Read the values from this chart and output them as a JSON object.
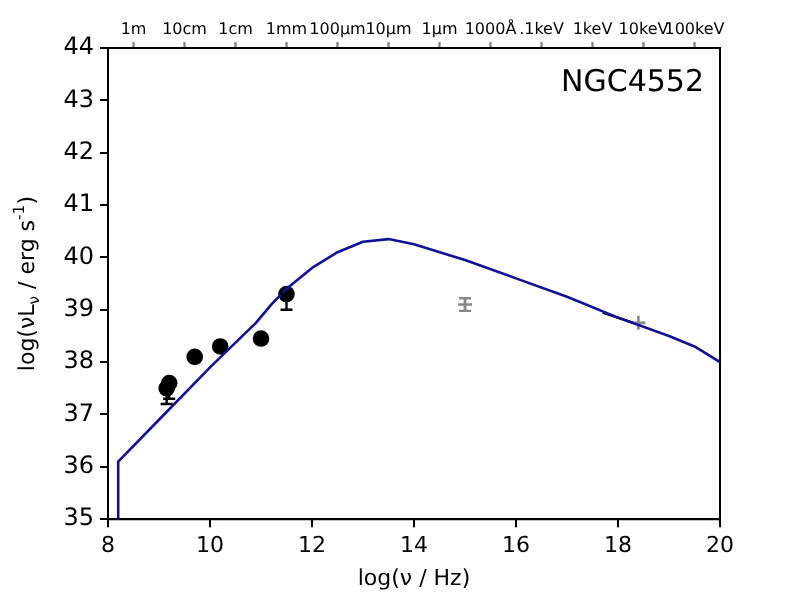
{
  "chart_data": {
    "type": "line",
    "annotations": [
      "NGC4552",
      "1m",
      "10cm",
      "1cm",
      "1mm",
      "100μm",
      "10μm",
      "1μm",
      "1000Å",
      ".1keV",
      "1keV",
      "10keV",
      "100keV"
    ],
    "xlabel": "log(ν / Hz)",
    "ylabel": "log(νL$_{ν}$ / erg s$^{-1}$)",
    "xlim": [
      8,
      20
    ],
    "xticks": [
      8,
      10,
      12,
      14,
      16,
      18,
      20
    ],
    "ylim": [
      35,
      44
    ],
    "yticks": [
      35,
      36,
      37,
      38,
      39,
      40,
      41,
      42,
      43,
      44
    ],
    "series": [
      {
        "color": "#10109a",
        "marker": "none",
        "x": [
          8.2,
          8.2,
          9,
          10,
          10.9,
          11.2,
          11.5,
          12,
          12.5,
          13,
          13.5,
          14,
          15,
          16,
          17,
          18,
          19,
          19.5,
          20
        ],
        "values": [
          35,
          36.1,
          36.9,
          37.9,
          38.75,
          39.1,
          39.4,
          39.8,
          40.1,
          40.3,
          40.35,
          40.25,
          39.95,
          39.6,
          39.25,
          38.85,
          38.5,
          38.3,
          38.0
        ]
      },
      {
        "type": "scatter",
        "color": "#000000",
        "marker": "circle",
        "x": [
          9.15,
          9.2,
          9.7,
          10.2,
          11.0,
          11.5
        ],
        "values": [
          37.5,
          37.6,
          38.1,
          38.3,
          38.45,
          39.3
        ],
        "errors": [
          [
            37.2,
            37.5
          ],
          [
            37.3,
            37.6
          ],
          null,
          null,
          null,
          [
            39.0,
            39.3
          ]
        ]
      },
      {
        "type": "line",
        "color": "#000000",
        "marker": "none",
        "x": [
          17.7,
          18.3
        ],
        "values": [
          38.95,
          38.75
        ]
      },
      {
        "type": "scatter",
        "color": "#888888",
        "marker": "cross",
        "x": [
          15,
          18.4
        ],
        "values": [
          39.1,
          38.75
        ],
        "errors": [
          0.12,
          null
        ]
      }
    ]
  }
}
